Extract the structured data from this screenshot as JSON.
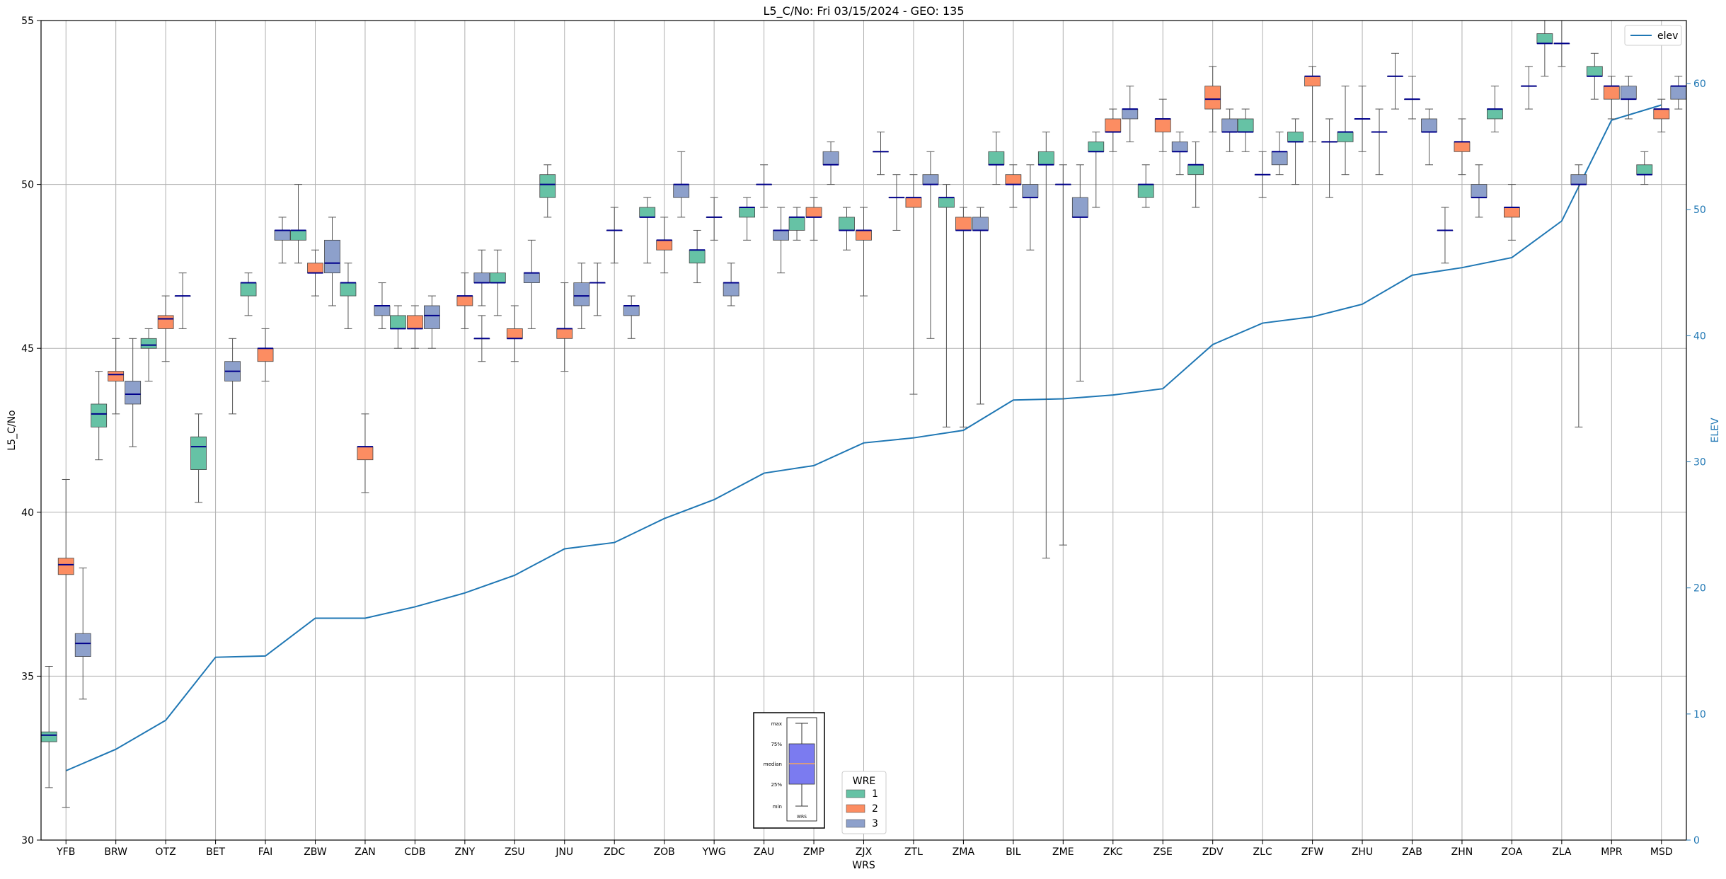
{
  "chart_data": {
    "type": "boxplot",
    "title": "L5_C/No: Fri 03/15/2024 - GEO: 135",
    "xlabel": "WRS",
    "ylabel": "L5_C/No",
    "y2label": "ELEV",
    "ylim": [
      30,
      55
    ],
    "y2lim": [
      0,
      65
    ],
    "yticks": [
      30,
      35,
      40,
      45,
      50,
      55
    ],
    "y2ticks": [
      0,
      10,
      20,
      30,
      40,
      50,
      60
    ],
    "grid": true,
    "legend_top_right": {
      "position": "top-right",
      "entries": [
        "elev"
      ]
    },
    "legend_wre": {
      "position": "bottom-center",
      "title": "WRE",
      "entries": [
        "1",
        "2",
        "3"
      ]
    },
    "colors": {
      "wre1": "#66c2a5",
      "wre2": "#fc8d62",
      "wre3": "#8da0cb",
      "median": "#00008b",
      "elev_line": "#1f77b4",
      "whisker": "#555555",
      "grid": "#b0b0b0",
      "inset_box": "#7b7bf0",
      "inset_median": "#f4a460"
    },
    "inset_key": {
      "labels": [
        "max",
        "75%",
        "median",
        "25%",
        "min"
      ],
      "xlabel": "WRS"
    },
    "categories": [
      "YFB",
      "BRW",
      "OTZ",
      "BET",
      "FAI",
      "ZBW",
      "ZAN",
      "CDB",
      "ZNY",
      "ZSU",
      "JNU",
      "ZDC",
      "ZOB",
      "YWG",
      "ZAU",
      "ZMP",
      "ZJX",
      "ZTL",
      "ZMA",
      "BIL",
      "ZME",
      "ZKC",
      "ZSE",
      "ZDV",
      "ZLC",
      "ZFW",
      "ZHU",
      "ZAB",
      "ZHN",
      "ZOA",
      "ZLA",
      "MPR",
      "MSD"
    ],
    "elev": [
      5.5,
      7.2,
      9.5,
      14.5,
      14.6,
      17.6,
      17.6,
      18.5,
      19.6,
      21.0,
      23.1,
      23.6,
      25.5,
      27.0,
      29.1,
      29.7,
      31.5,
      31.9,
      32.5,
      34.9,
      35.0,
      35.3,
      35.8,
      39.3,
      41.0,
      41.5,
      42.5,
      44.8,
      45.4,
      46.2,
      49.1,
      57.1,
      58.3
    ],
    "boxes": [
      {
        "cat": "YFB",
        "wre": 1,
        "min": 31.6,
        "q1": 33.0,
        "med": 33.2,
        "q3": 33.3,
        "max": 35.3
      },
      {
        "cat": "YFB",
        "wre": 2,
        "min": 31.0,
        "q1": 38.1,
        "med": 38.4,
        "q3": 38.6,
        "max": 41.0
      },
      {
        "cat": "YFB",
        "wre": 3,
        "min": 34.3,
        "q1": 35.6,
        "med": 36.0,
        "q3": 36.3,
        "max": 38.3
      },
      {
        "cat": "BRW",
        "wre": 1,
        "min": 41.6,
        "q1": 42.6,
        "med": 43.0,
        "q3": 43.3,
        "max": 44.3
      },
      {
        "cat": "BRW",
        "wre": 2,
        "min": 43.0,
        "q1": 44.0,
        "med": 44.2,
        "q3": 44.3,
        "max": 45.3
      },
      {
        "cat": "BRW",
        "wre": 3,
        "min": 42.0,
        "q1": 43.3,
        "med": 43.6,
        "q3": 44.0,
        "max": 45.3
      },
      {
        "cat": "OTZ",
        "wre": 1,
        "min": 44.0,
        "q1": 45.0,
        "med": 45.1,
        "q3": 45.3,
        "max": 45.6
      },
      {
        "cat": "OTZ",
        "wre": 2,
        "min": 44.6,
        "q1": 45.6,
        "med": 45.9,
        "q3": 46.0,
        "max": 46.6
      },
      {
        "cat": "OTZ",
        "wre": 3,
        "min": 45.6,
        "q1": 46.6,
        "med": 46.6,
        "q3": 46.6,
        "max": 47.3
      },
      {
        "cat": "BET",
        "wre": 1,
        "min": 40.3,
        "q1": 41.3,
        "med": 42.0,
        "q3": 42.3,
        "max": 43.0
      },
      {
        "cat": "BET",
        "wre": 3,
        "min": 43.0,
        "q1": 44.0,
        "med": 44.3,
        "q3": 44.6,
        "max": 45.3
      },
      {
        "cat": "FAI",
        "wre": 1,
        "min": 46.0,
        "q1": 46.6,
        "med": 47.0,
        "q3": 47.0,
        "max": 47.3
      },
      {
        "cat": "FAI",
        "wre": 2,
        "min": 44.0,
        "q1": 44.6,
        "med": 45.0,
        "q3": 45.0,
        "max": 45.6
      },
      {
        "cat": "FAI",
        "wre": 3,
        "min": 47.6,
        "q1": 48.3,
        "med": 48.6,
        "q3": 48.6,
        "max": 49.0
      },
      {
        "cat": "ZBW",
        "wre": 1,
        "min": 47.6,
        "q1": 48.3,
        "med": 48.6,
        "q3": 48.6,
        "max": 50.0
      },
      {
        "cat": "ZBW",
        "wre": 2,
        "min": 46.6,
        "q1": 47.3,
        "med": 47.3,
        "q3": 47.6,
        "max": 48.0
      },
      {
        "cat": "ZBW",
        "wre": 3,
        "min": 46.3,
        "q1": 47.3,
        "med": 47.6,
        "q3": 48.3,
        "max": 49.0
      },
      {
        "cat": "ZAN",
        "wre": 1,
        "min": 45.6,
        "q1": 46.6,
        "med": 47.0,
        "q3": 47.0,
        "max": 47.6
      },
      {
        "cat": "ZAN",
        "wre": 2,
        "min": 40.6,
        "q1": 41.6,
        "med": 42.0,
        "q3": 42.0,
        "max": 43.0
      },
      {
        "cat": "ZAN",
        "wre": 3,
        "min": 45.6,
        "q1": 46.0,
        "med": 46.3,
        "q3": 46.3,
        "max": 47.0
      },
      {
        "cat": "CDB",
        "wre": 1,
        "min": 45.0,
        "q1": 45.6,
        "med": 45.6,
        "q3": 46.0,
        "max": 46.3
      },
      {
        "cat": "CDB",
        "wre": 2,
        "min": 45.0,
        "q1": 45.6,
        "med": 45.6,
        "q3": 46.0,
        "max": 46.3
      },
      {
        "cat": "CDB",
        "wre": 3,
        "min": 45.0,
        "q1": 45.6,
        "med": 46.0,
        "q3": 46.3,
        "max": 46.6
      },
      {
        "cat": "ZNY",
        "wre": 3,
        "min": 44.6,
        "q1": 45.3,
        "med": 45.3,
        "q3": 45.3,
        "max": 46.0
      },
      {
        "cat": "ZNY",
        "wre": 2,
        "min": 45.6,
        "q1": 46.3,
        "med": 46.6,
        "q3": 46.6,
        "max": 47.3
      },
      {
        "cat": "ZNY",
        "wre": 3,
        "min": 46.3,
        "q1": 47.0,
        "med": 47.0,
        "q3": 47.3,
        "max": 48.0
      },
      {
        "cat": "ZSU",
        "wre": 1,
        "min": 46.0,
        "q1": 47.0,
        "med": 47.0,
        "q3": 47.3,
        "max": 48.0
      },
      {
        "cat": "ZSU",
        "wre": 2,
        "min": 44.6,
        "q1": 45.3,
        "med": 45.3,
        "q3": 45.6,
        "max": 46.3
      },
      {
        "cat": "ZSU",
        "wre": 3,
        "min": 45.6,
        "q1": 47.0,
        "med": 47.3,
        "q3": 47.3,
        "max": 48.3
      },
      {
        "cat": "JNU",
        "wre": 1,
        "min": 49.0,
        "q1": 49.6,
        "med": 50.0,
        "q3": 50.3,
        "max": 50.6
      },
      {
        "cat": "JNU",
        "wre": 2,
        "min": 44.3,
        "q1": 45.3,
        "med": 45.6,
        "q3": 45.6,
        "max": 47.0
      },
      {
        "cat": "JNU",
        "wre": 3,
        "min": 45.6,
        "q1": 46.3,
        "med": 46.6,
        "q3": 47.0,
        "max": 47.6
      },
      {
        "cat": "ZDC",
        "wre": 1,
        "min": 46.0,
        "q1": 47.0,
        "med": 47.0,
        "q3": 47.0,
        "max": 47.6
      },
      {
        "cat": "ZDC",
        "wre": 2,
        "min": 47.6,
        "q1": 48.6,
        "med": 48.6,
        "q3": 48.6,
        "max": 49.3
      },
      {
        "cat": "ZDC",
        "wre": 3,
        "min": 45.3,
        "q1": 46.0,
        "med": 46.3,
        "q3": 46.3,
        "max": 46.6
      },
      {
        "cat": "ZOB",
        "wre": 1,
        "min": 47.6,
        "q1": 49.0,
        "med": 49.0,
        "q3": 49.3,
        "max": 49.6
      },
      {
        "cat": "ZOB",
        "wre": 2,
        "min": 47.3,
        "q1": 48.0,
        "med": 48.3,
        "q3": 48.3,
        "max": 49.0
      },
      {
        "cat": "ZOB",
        "wre": 3,
        "min": 49.0,
        "q1": 49.6,
        "med": 50.0,
        "q3": 50.0,
        "max": 51.0
      },
      {
        "cat": "YWG",
        "wre": 1,
        "min": 47.0,
        "q1": 47.6,
        "med": 48.0,
        "q3": 48.0,
        "max": 48.6
      },
      {
        "cat": "YWG",
        "wre": 2,
        "min": 48.3,
        "q1": 49.0,
        "med": 49.0,
        "q3": 49.0,
        "max": 49.6
      },
      {
        "cat": "YWG",
        "wre": 3,
        "min": 46.3,
        "q1": 46.6,
        "med": 47.0,
        "q3": 47.0,
        "max": 47.6
      },
      {
        "cat": "ZAU",
        "wre": 1,
        "min": 48.3,
        "q1": 49.0,
        "med": 49.3,
        "q3": 49.3,
        "max": 49.6
      },
      {
        "cat": "ZAU",
        "wre": 2,
        "min": 49.3,
        "q1": 50.0,
        "med": 50.0,
        "q3": 50.0,
        "max": 50.6
      },
      {
        "cat": "ZAU",
        "wre": 3,
        "min": 47.3,
        "q1": 48.3,
        "med": 48.6,
        "q3": 48.6,
        "max": 49.3
      },
      {
        "cat": "ZMP",
        "wre": 1,
        "min": 48.3,
        "q1": 48.6,
        "med": 49.0,
        "q3": 49.0,
        "max": 49.3
      },
      {
        "cat": "ZMP",
        "wre": 2,
        "min": 48.3,
        "q1": 49.0,
        "med": 49.0,
        "q3": 49.3,
        "max": 49.6
      },
      {
        "cat": "ZMP",
        "wre": 3,
        "min": 50.0,
        "q1": 50.6,
        "med": 50.6,
        "q3": 51.0,
        "max": 51.3
      },
      {
        "cat": "ZJX",
        "wre": 1,
        "min": 48.0,
        "q1": 48.6,
        "med": 48.6,
        "q3": 49.0,
        "max": 49.3
      },
      {
        "cat": "ZJX",
        "wre": 2,
        "min": 46.6,
        "q1": 48.3,
        "med": 48.6,
        "q3": 48.6,
        "max": 49.3
      },
      {
        "cat": "ZJX",
        "wre": 3,
        "min": 50.3,
        "q1": 51.0,
        "med": 51.0,
        "q3": 51.0,
        "max": 51.6
      },
      {
        "cat": "ZTL",
        "wre": 1,
        "min": 48.6,
        "q1": 49.6,
        "med": 49.6,
        "q3": 49.6,
        "max": 50.3
      },
      {
        "cat": "ZTL",
        "wre": 2,
        "min": 43.6,
        "q1": 49.3,
        "med": 49.6,
        "q3": 49.6,
        "max": 50.3
      },
      {
        "cat": "ZTL",
        "wre": 3,
        "min": 45.3,
        "q1": 50.0,
        "med": 50.0,
        "q3": 50.3,
        "max": 51.0
      },
      {
        "cat": "ZMA",
        "wre": 1,
        "min": 42.6,
        "q1": 49.3,
        "med": 49.6,
        "q3": 49.6,
        "max": 50.0
      },
      {
        "cat": "ZMA",
        "wre": 2,
        "min": 42.6,
        "q1": 48.6,
        "med": 48.6,
        "q3": 49.0,
        "max": 49.3
      },
      {
        "cat": "ZMA",
        "wre": 3,
        "min": 43.3,
        "q1": 48.6,
        "med": 48.6,
        "q3": 49.0,
        "max": 49.3
      },
      {
        "cat": "BIL",
        "wre": 1,
        "min": 50.0,
        "q1": 50.6,
        "med": 50.6,
        "q3": 51.0,
        "max": 51.6
      },
      {
        "cat": "BIL",
        "wre": 2,
        "min": 49.3,
        "q1": 50.0,
        "med": 50.0,
        "q3": 50.3,
        "max": 50.6
      },
      {
        "cat": "BIL",
        "wre": 3,
        "min": 48.0,
        "q1": 49.6,
        "med": 49.6,
        "q3": 50.0,
        "max": 50.6
      },
      {
        "cat": "ZME",
        "wre": 1,
        "min": 38.6,
        "q1": 50.6,
        "med": 50.6,
        "q3": 51.0,
        "max": 51.6
      },
      {
        "cat": "ZME",
        "wre": 2,
        "min": 39.0,
        "q1": 50.0,
        "med": 50.0,
        "q3": 50.0,
        "max": 50.6
      },
      {
        "cat": "ZME",
        "wre": 3,
        "min": 44.0,
        "q1": 49.0,
        "med": 49.0,
        "q3": 49.6,
        "max": 50.6
      },
      {
        "cat": "ZKC",
        "wre": 1,
        "min": 49.3,
        "q1": 51.0,
        "med": 51.0,
        "q3": 51.3,
        "max": 51.6
      },
      {
        "cat": "ZKC",
        "wre": 2,
        "min": 51.0,
        "q1": 51.6,
        "med": 51.6,
        "q3": 52.0,
        "max": 52.3
      },
      {
        "cat": "ZKC",
        "wre": 3,
        "min": 51.3,
        "q1": 52.0,
        "med": 52.3,
        "q3": 52.3,
        "max": 53.0
      },
      {
        "cat": "ZSE",
        "wre": 1,
        "min": 49.3,
        "q1": 49.6,
        "med": 50.0,
        "q3": 50.0,
        "max": 50.6
      },
      {
        "cat": "ZSE",
        "wre": 2,
        "min": 51.0,
        "q1": 51.6,
        "med": 52.0,
        "q3": 52.0,
        "max": 52.6
      },
      {
        "cat": "ZSE",
        "wre": 3,
        "min": 50.3,
        "q1": 51.0,
        "med": 51.0,
        "q3": 51.3,
        "max": 51.6
      },
      {
        "cat": "ZDV",
        "wre": 1,
        "min": 49.3,
        "q1": 50.3,
        "med": 50.6,
        "q3": 50.6,
        "max": 51.3
      },
      {
        "cat": "ZDV",
        "wre": 2,
        "min": 51.6,
        "q1": 52.3,
        "med": 52.6,
        "q3": 53.0,
        "max": 53.6
      },
      {
        "cat": "ZDV",
        "wre": 3,
        "min": 51.0,
        "q1": 51.6,
        "med": 51.6,
        "q3": 52.0,
        "max": 52.3
      },
      {
        "cat": "ZLC",
        "wre": 1,
        "min": 51.0,
        "q1": 51.6,
        "med": 51.6,
        "q3": 52.0,
        "max": 52.3
      },
      {
        "cat": "ZLC",
        "wre": 2,
        "min": 49.6,
        "q1": 50.3,
        "med": 50.3,
        "q3": 50.3,
        "max": 51.0
      },
      {
        "cat": "ZLC",
        "wre": 3,
        "min": 50.3,
        "q1": 50.6,
        "med": 51.0,
        "q3": 51.0,
        "max": 51.6
      },
      {
        "cat": "ZFW",
        "wre": 1,
        "min": 50.0,
        "q1": 51.3,
        "med": 51.3,
        "q3": 51.6,
        "max": 52.0
      },
      {
        "cat": "ZFW",
        "wre": 2,
        "min": 51.3,
        "q1": 53.0,
        "med": 53.3,
        "q3": 53.3,
        "max": 53.6
      },
      {
        "cat": "ZFW",
        "wre": 3,
        "min": 49.6,
        "q1": 51.3,
        "med": 51.3,
        "q3": 51.3,
        "max": 52.0
      },
      {
        "cat": "ZHU",
        "wre": 1,
        "min": 50.3,
        "q1": 51.3,
        "med": 51.6,
        "q3": 51.6,
        "max": 53.0
      },
      {
        "cat": "ZHU",
        "wre": 2,
        "min": 51.0,
        "q1": 52.0,
        "med": 52.0,
        "q3": 52.0,
        "max": 53.0
      },
      {
        "cat": "ZHU",
        "wre": 3,
        "min": 50.3,
        "q1": 51.6,
        "med": 51.6,
        "q3": 51.6,
        "max": 52.3
      },
      {
        "cat": "ZAB",
        "wre": 1,
        "min": 52.3,
        "q1": 53.3,
        "med": 53.3,
        "q3": 53.3,
        "max": 54.0
      },
      {
        "cat": "ZAB",
        "wre": 2,
        "min": 52.0,
        "q1": 52.6,
        "med": 52.6,
        "q3": 52.6,
        "max": 53.3
      },
      {
        "cat": "ZAB",
        "wre": 3,
        "min": 50.6,
        "q1": 51.6,
        "med": 51.6,
        "q3": 52.0,
        "max": 52.3
      },
      {
        "cat": "ZHN",
        "wre": 1,
        "min": 47.6,
        "q1": 48.6,
        "med": 48.6,
        "q3": 48.6,
        "max": 49.3
      },
      {
        "cat": "ZHN",
        "wre": 2,
        "min": 50.3,
        "q1": 51.0,
        "med": 51.3,
        "q3": 51.3,
        "max": 52.0
      },
      {
        "cat": "ZHN",
        "wre": 3,
        "min": 49.0,
        "q1": 49.6,
        "med": 49.6,
        "q3": 50.0,
        "max": 50.6
      },
      {
        "cat": "ZOA",
        "wre": 1,
        "min": 51.6,
        "q1": 52.0,
        "med": 52.3,
        "q3": 52.3,
        "max": 53.0
      },
      {
        "cat": "ZOA",
        "wre": 2,
        "min": 48.3,
        "q1": 49.0,
        "med": 49.3,
        "q3": 49.3,
        "max": 50.0
      },
      {
        "cat": "ZOA",
        "wre": 3,
        "min": 52.3,
        "q1": 53.0,
        "med": 53.0,
        "q3": 53.0,
        "max": 53.6
      },
      {
        "cat": "ZLA",
        "wre": 1,
        "min": 53.3,
        "q1": 54.3,
        "med": 54.3,
        "q3": 54.6,
        "max": 55.0
      },
      {
        "cat": "ZLA",
        "wre": 2,
        "min": 53.6,
        "q1": 54.3,
        "med": 54.3,
        "q3": 54.3,
        "max": 55.0
      },
      {
        "cat": "ZLA",
        "wre": 3,
        "min": 42.6,
        "q1": 50.0,
        "med": 50.0,
        "q3": 50.3,
        "max": 50.6
      },
      {
        "cat": "MPR",
        "wre": 1,
        "min": 52.6,
        "q1": 53.3,
        "med": 53.3,
        "q3": 53.6,
        "max": 54.0
      },
      {
        "cat": "MPR",
        "wre": 2,
        "min": 52.0,
        "q1": 52.6,
        "med": 53.0,
        "q3": 53.0,
        "max": 53.3
      },
      {
        "cat": "MPR",
        "wre": 3,
        "min": 52.0,
        "q1": 52.6,
        "med": 52.6,
        "q3": 53.0,
        "max": 53.3
      },
      {
        "cat": "MSD",
        "wre": 1,
        "min": 50.0,
        "q1": 50.3,
        "med": 50.3,
        "q3": 50.6,
        "max": 51.0
      },
      {
        "cat": "MSD",
        "wre": 2,
        "min": 51.6,
        "q1": 52.0,
        "med": 52.3,
        "q3": 52.3,
        "max": 52.6
      },
      {
        "cat": "MSD",
        "wre": 3,
        "min": 52.3,
        "q1": 52.6,
        "med": 53.0,
        "q3": 53.0,
        "max": 53.3
      }
    ]
  }
}
